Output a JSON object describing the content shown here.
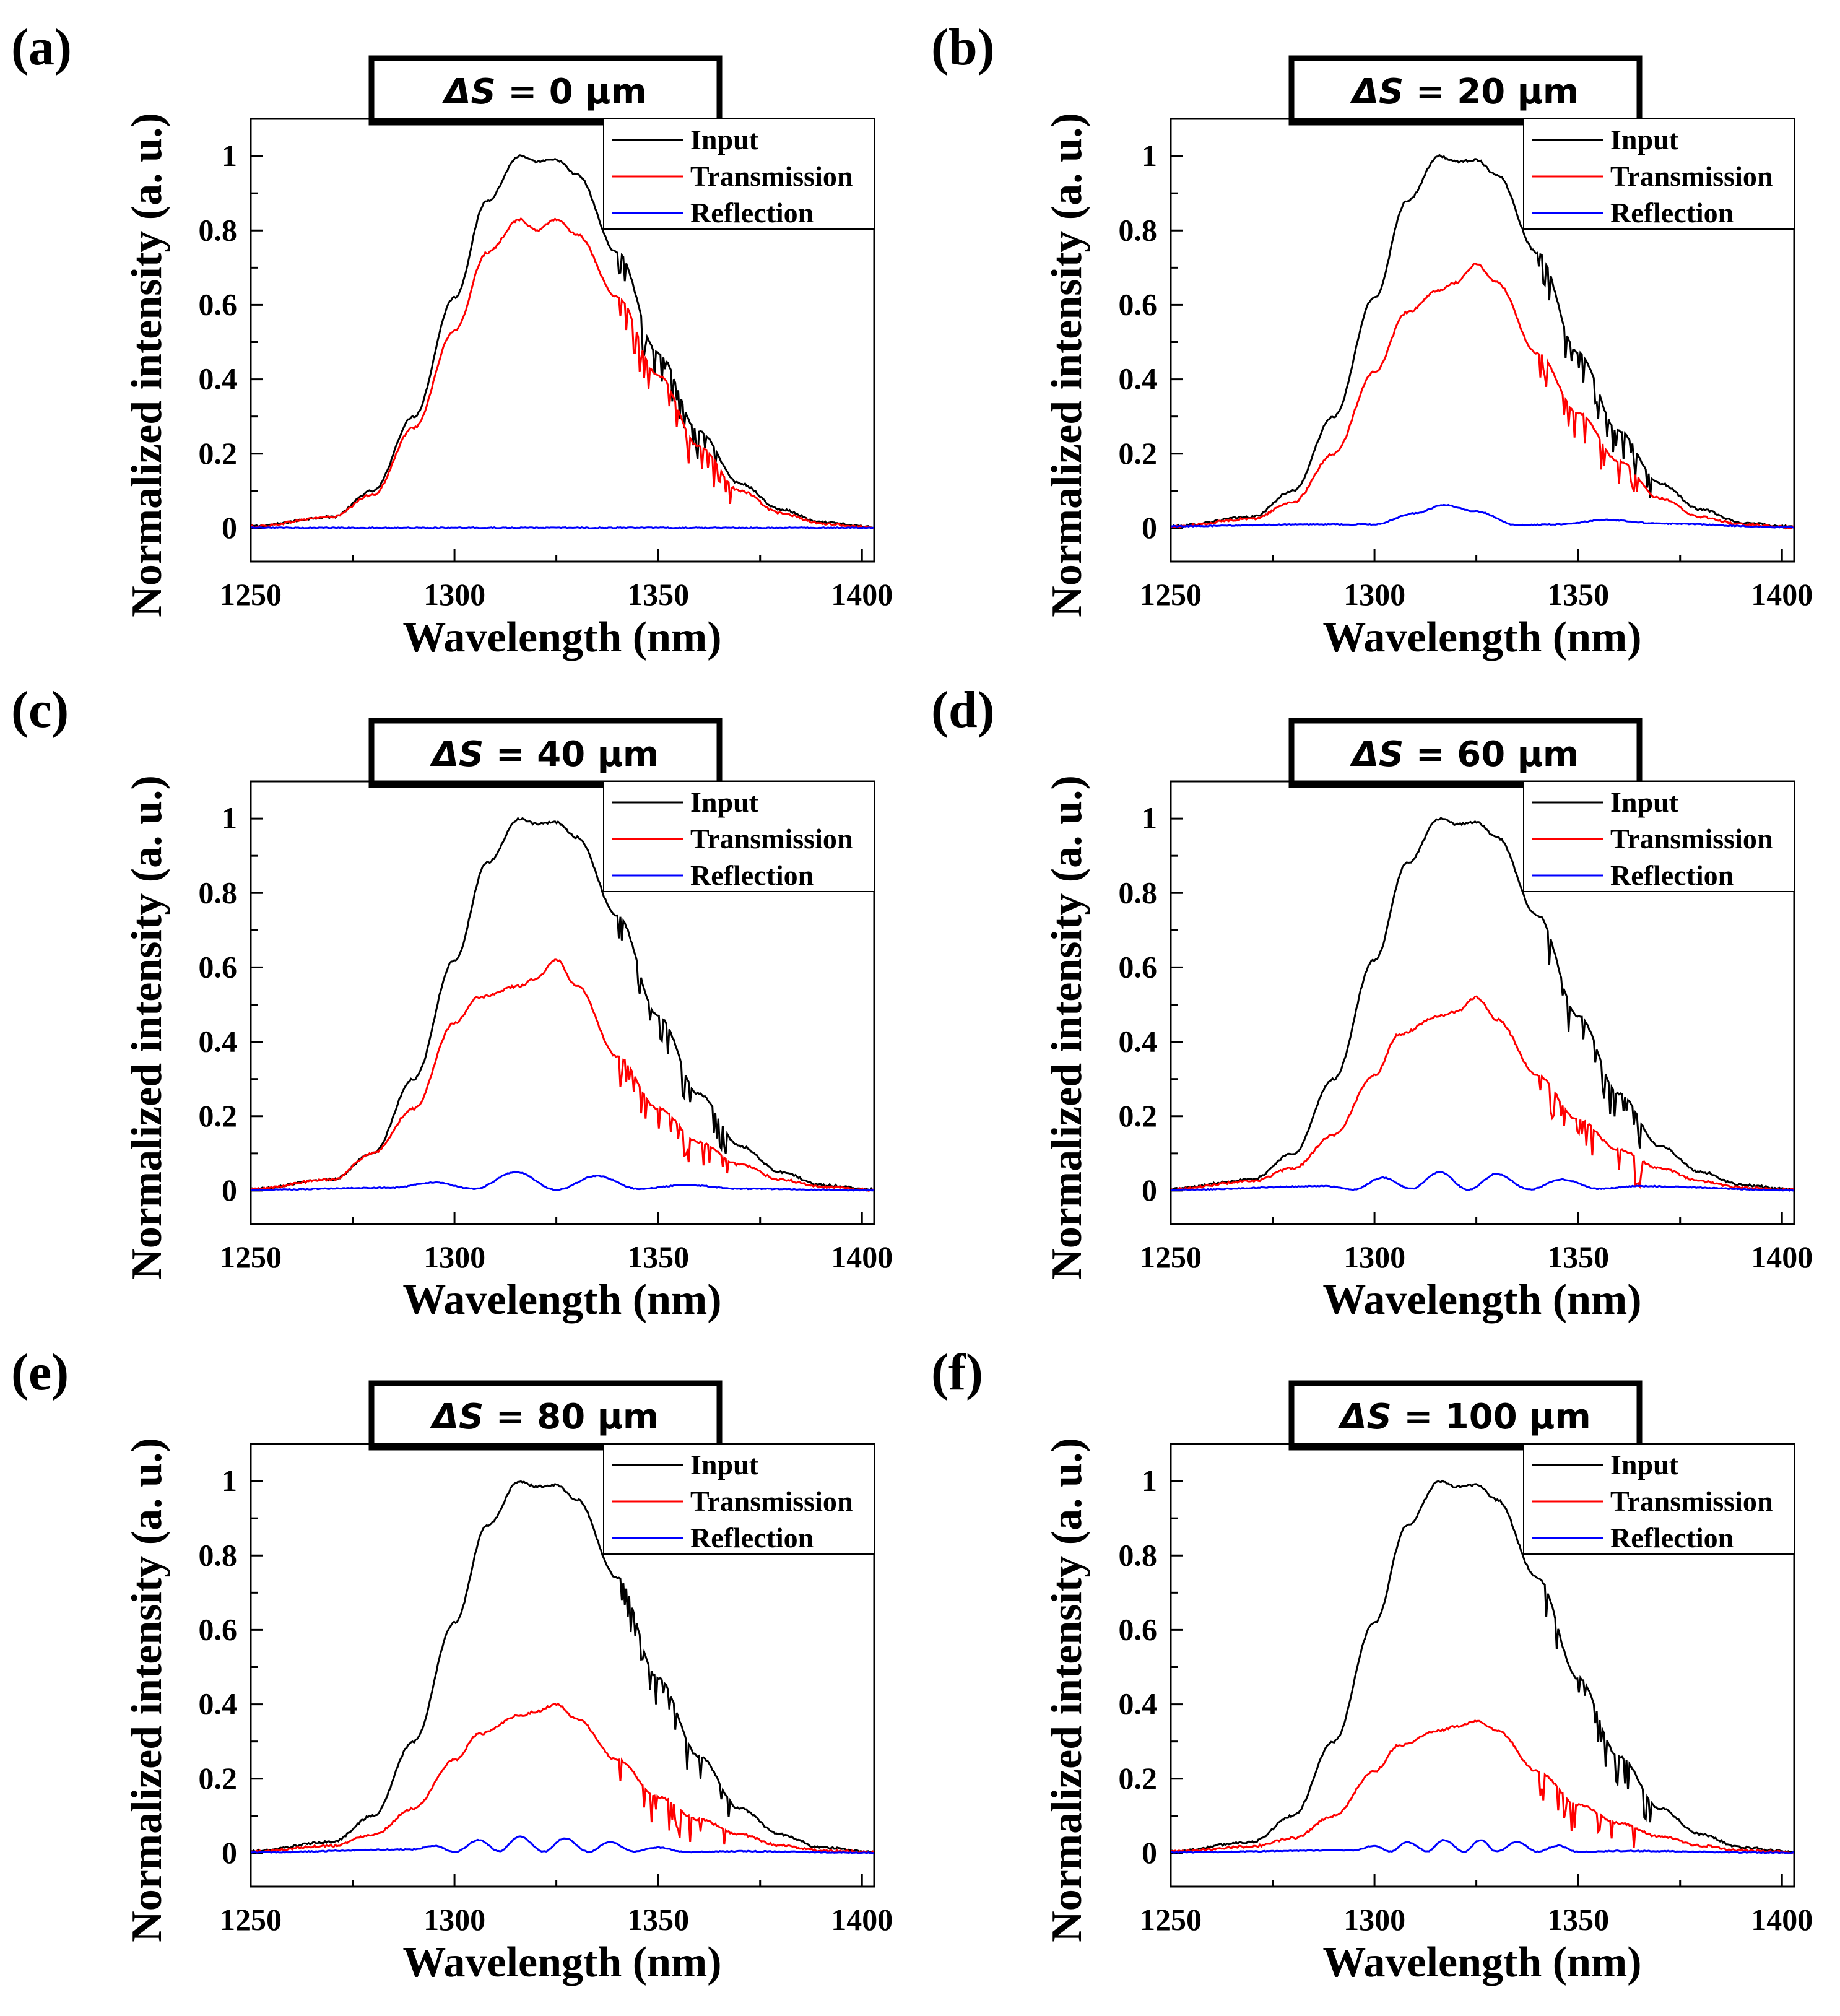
{
  "figure": {
    "x_label": "Wavelength (nm)",
    "y_label": "Normalized intensity (a. u.)",
    "legend": [
      "Input",
      "Transmission",
      "Reflection"
    ],
    "colors": {
      "input": "#000000",
      "transmission": "#ff0000",
      "reflection": "#0000ff"
    }
  },
  "chart_data": [
    {
      "type": "line",
      "panel": "(a)",
      "title_symbol": "ΔS",
      "title_value": " = 0 μm",
      "xlim": [
        1250,
        1403
      ],
      "ylim": [
        -0.09,
        1.1
      ],
      "xticks": [
        1250,
        1300,
        1350,
        1400
      ],
      "yticks": [
        0.0,
        0.2,
        0.4,
        0.6,
        0.8,
        1.0
      ],
      "xlabel": "Wavelength (nm)",
      "ylabel": "Normalized intensity (a. u.)",
      "series": [
        {
          "name": "Input",
          "x": [
            1250,
            1270,
            1280,
            1290,
            1300,
            1308,
            1316,
            1320,
            1325,
            1330,
            1340,
            1350,
            1360,
            1370,
            1380,
            1390,
            1403
          ],
          "values": [
            0.005,
            0.03,
            0.1,
            0.3,
            0.62,
            0.88,
            1.0,
            0.985,
            0.99,
            0.95,
            0.74,
            0.47,
            0.26,
            0.12,
            0.05,
            0.015,
            0.003
          ]
        },
        {
          "name": "Transmission",
          "x": [
            1250,
            1270,
            1280,
            1290,
            1300,
            1308,
            1316,
            1320,
            1325,
            1330,
            1340,
            1350,
            1360,
            1370,
            1380,
            1390,
            1403
          ],
          "values": [
            0.004,
            0.03,
            0.09,
            0.27,
            0.53,
            0.74,
            0.83,
            0.8,
            0.83,
            0.79,
            0.62,
            0.41,
            0.22,
            0.1,
            0.04,
            0.012,
            0.002
          ]
        },
        {
          "name": "Reflection",
          "x": [
            1250,
            1403
          ],
          "values": [
            0.001,
            0.001
          ]
        }
      ]
    },
    {
      "type": "line",
      "panel": "(b)",
      "title_symbol": "ΔS",
      "title_value": " = 20 μm",
      "xlim": [
        1250,
        1403
      ],
      "ylim": [
        -0.09,
        1.1
      ],
      "xticks": [
        1250,
        1300,
        1350,
        1400
      ],
      "yticks": [
        0.0,
        0.2,
        0.4,
        0.6,
        0.8,
        1.0
      ],
      "xlabel": "Wavelength (nm)",
      "ylabel": "Normalized intensity (a. u.)",
      "series": [
        {
          "name": "Input",
          "x": [
            1250,
            1270,
            1280,
            1290,
            1300,
            1308,
            1316,
            1320,
            1325,
            1330,
            1340,
            1350,
            1360,
            1370,
            1380,
            1390,
            1403
          ],
          "values": [
            0.005,
            0.03,
            0.1,
            0.3,
            0.62,
            0.88,
            1.0,
            0.985,
            0.99,
            0.95,
            0.74,
            0.47,
            0.26,
            0.12,
            0.05,
            0.015,
            0.003
          ]
        },
        {
          "name": "Transmission",
          "x": [
            1250,
            1270,
            1280,
            1290,
            1300,
            1308,
            1316,
            1320,
            1325,
            1330,
            1340,
            1350,
            1360,
            1370,
            1380,
            1390,
            1403
          ],
          "values": [
            0.004,
            0.025,
            0.07,
            0.2,
            0.42,
            0.58,
            0.64,
            0.66,
            0.71,
            0.66,
            0.47,
            0.31,
            0.18,
            0.08,
            0.03,
            0.01,
            0.002
          ]
        },
        {
          "name": "Reflection",
          "x": [
            1250,
            1285,
            1300,
            1310,
            1317,
            1325,
            1335,
            1345,
            1357,
            1370,
            1403
          ],
          "values": [
            0.005,
            0.01,
            0.01,
            0.04,
            0.062,
            0.045,
            0.008,
            0.01,
            0.022,
            0.012,
            0.002
          ]
        }
      ]
    },
    {
      "type": "line",
      "panel": "(c)",
      "title_symbol": "ΔS",
      "title_value": " = 40 μm",
      "xlim": [
        1250,
        1403
      ],
      "ylim": [
        -0.09,
        1.1
      ],
      "xticks": [
        1250,
        1300,
        1350,
        1400
      ],
      "yticks": [
        0.0,
        0.2,
        0.4,
        0.6,
        0.8,
        1.0
      ],
      "xlabel": "Wavelength (nm)",
      "ylabel": "Normalized intensity (a. u.)",
      "series": [
        {
          "name": "Input",
          "x": [
            1250,
            1270,
            1280,
            1290,
            1300,
            1308,
            1316,
            1320,
            1325,
            1330,
            1340,
            1350,
            1360,
            1370,
            1380,
            1390,
            1403
          ],
          "values": [
            0.005,
            0.03,
            0.1,
            0.3,
            0.62,
            0.88,
            1.0,
            0.985,
            0.99,
            0.95,
            0.74,
            0.47,
            0.26,
            0.12,
            0.05,
            0.015,
            0.003
          ]
        },
        {
          "name": "Transmission",
          "x": [
            1250,
            1270,
            1280,
            1290,
            1300,
            1306,
            1316,
            1320,
            1325,
            1330,
            1340,
            1350,
            1360,
            1370,
            1380,
            1390,
            1403
          ],
          "values": [
            0.004,
            0.03,
            0.1,
            0.22,
            0.45,
            0.52,
            0.55,
            0.57,
            0.62,
            0.55,
            0.36,
            0.22,
            0.13,
            0.07,
            0.03,
            0.01,
            0.002
          ]
        },
        {
          "name": "Reflection",
          "x": [
            1250,
            1285,
            1295,
            1305,
            1315,
            1325,
            1335,
            1345,
            1357,
            1370,
            1403
          ],
          "values": [
            0.002,
            0.008,
            0.022,
            0.005,
            0.05,
            0.002,
            0.04,
            0.005,
            0.015,
            0.005,
            0.001
          ]
        }
      ]
    },
    {
      "type": "line",
      "panel": "(d)",
      "title_symbol": "ΔS",
      "title_value": " = 60 μm",
      "xlim": [
        1250,
        1403
      ],
      "ylim": [
        -0.09,
        1.1
      ],
      "xticks": [
        1250,
        1300,
        1350,
        1400
      ],
      "yticks": [
        0.0,
        0.2,
        0.4,
        0.6,
        0.8,
        1.0
      ],
      "xlabel": "Wavelength (nm)",
      "ylabel": "Normalized intensity (a. u.)",
      "series": [
        {
          "name": "Input",
          "x": [
            1250,
            1270,
            1280,
            1290,
            1300,
            1308,
            1316,
            1320,
            1325,
            1330,
            1340,
            1350,
            1360,
            1370,
            1380,
            1390,
            1403
          ],
          "values": [
            0.005,
            0.03,
            0.1,
            0.3,
            0.62,
            0.88,
            1.0,
            0.985,
            0.99,
            0.95,
            0.74,
            0.47,
            0.26,
            0.12,
            0.05,
            0.015,
            0.003
          ]
        },
        {
          "name": "Transmission",
          "x": [
            1250,
            1270,
            1280,
            1290,
            1300,
            1306,
            1316,
            1320,
            1325,
            1330,
            1340,
            1350,
            1360,
            1370,
            1380,
            1390,
            1403
          ],
          "values": [
            0.004,
            0.025,
            0.06,
            0.15,
            0.31,
            0.42,
            0.47,
            0.48,
            0.52,
            0.46,
            0.31,
            0.19,
            0.11,
            0.06,
            0.025,
            0.008,
            0.002
          ]
        },
        {
          "name": "Reflection",
          "x": [
            1250,
            1288,
            1295,
            1302,
            1309,
            1316,
            1323,
            1330,
            1338,
            1346,
            1355,
            1365,
            1403
          ],
          "values": [
            0.002,
            0.012,
            0.003,
            0.035,
            0.005,
            0.05,
            0.002,
            0.045,
            0.003,
            0.03,
            0.005,
            0.012,
            0.001
          ]
        }
      ]
    },
    {
      "type": "line",
      "panel": "(e)",
      "title_symbol": "ΔS",
      "title_value": " = 80 μm",
      "xlim": [
        1250,
        1403
      ],
      "ylim": [
        -0.09,
        1.1
      ],
      "xticks": [
        1250,
        1300,
        1350,
        1400
      ],
      "yticks": [
        0.0,
        0.2,
        0.4,
        0.6,
        0.8,
        1.0
      ],
      "xlabel": "Wavelength (nm)",
      "ylabel": "Normalized intensity (a. u.)",
      "series": [
        {
          "name": "Input",
          "x": [
            1250,
            1270,
            1280,
            1290,
            1300,
            1308,
            1316,
            1320,
            1325,
            1330,
            1340,
            1350,
            1360,
            1370,
            1380,
            1390,
            1403
          ],
          "values": [
            0.005,
            0.03,
            0.1,
            0.3,
            0.62,
            0.88,
            1.0,
            0.985,
            0.99,
            0.95,
            0.74,
            0.47,
            0.26,
            0.12,
            0.05,
            0.015,
            0.003
          ]
        },
        {
          "name": "Transmission",
          "x": [
            1250,
            1270,
            1280,
            1290,
            1300,
            1306,
            1316,
            1320,
            1325,
            1330,
            1340,
            1350,
            1360,
            1370,
            1380,
            1390,
            1403
          ],
          "values": [
            0.004,
            0.02,
            0.05,
            0.12,
            0.25,
            0.32,
            0.37,
            0.38,
            0.4,
            0.36,
            0.25,
            0.15,
            0.09,
            0.05,
            0.02,
            0.007,
            0.002
          ]
        },
        {
          "name": "Reflection",
          "x": [
            1250,
            1290,
            1295,
            1300,
            1306,
            1311,
            1316,
            1322,
            1327,
            1333,
            1338,
            1344,
            1350,
            1357,
            1370,
            1403
          ],
          "values": [
            0.002,
            0.01,
            0.02,
            0.003,
            0.035,
            0.005,
            0.045,
            0.004,
            0.04,
            0.003,
            0.03,
            0.004,
            0.015,
            0.003,
            0.005,
            0.001
          ]
        }
      ]
    },
    {
      "type": "line",
      "panel": "(f)",
      "title_symbol": "ΔS",
      "title_value": " = 100 μm",
      "xlim": [
        1250,
        1403
      ],
      "ylim": [
        -0.09,
        1.1
      ],
      "xticks": [
        1250,
        1300,
        1350,
        1400
      ],
      "yticks": [
        0.0,
        0.2,
        0.4,
        0.6,
        0.8,
        1.0
      ],
      "xlabel": "Wavelength (nm)",
      "ylabel": "Normalized intensity (a. u.)",
      "series": [
        {
          "name": "Input",
          "x": [
            1250,
            1270,
            1280,
            1290,
            1300,
            1308,
            1316,
            1320,
            1325,
            1330,
            1340,
            1350,
            1360,
            1370,
            1380,
            1390,
            1403
          ],
          "values": [
            0.005,
            0.03,
            0.1,
            0.3,
            0.62,
            0.88,
            1.0,
            0.985,
            0.99,
            0.95,
            0.74,
            0.47,
            0.26,
            0.12,
            0.05,
            0.015,
            0.003
          ]
        },
        {
          "name": "Transmission",
          "x": [
            1250,
            1270,
            1280,
            1290,
            1300,
            1306,
            1316,
            1320,
            1325,
            1330,
            1340,
            1350,
            1360,
            1370,
            1380,
            1390,
            1403
          ],
          "values": [
            0.004,
            0.018,
            0.04,
            0.1,
            0.22,
            0.29,
            0.33,
            0.34,
            0.355,
            0.33,
            0.22,
            0.13,
            0.08,
            0.045,
            0.02,
            0.007,
            0.002
          ]
        },
        {
          "name": "Reflection",
          "x": [
            1250,
            1295,
            1300,
            1304,
            1308,
            1313,
            1317,
            1322,
            1326,
            1330,
            1335,
            1340,
            1345,
            1350,
            1360,
            1403
          ],
          "values": [
            0.002,
            0.008,
            0.02,
            0.004,
            0.03,
            0.005,
            0.035,
            0.004,
            0.035,
            0.004,
            0.03,
            0.004,
            0.02,
            0.003,
            0.006,
            0.001
          ]
        }
      ]
    }
  ]
}
